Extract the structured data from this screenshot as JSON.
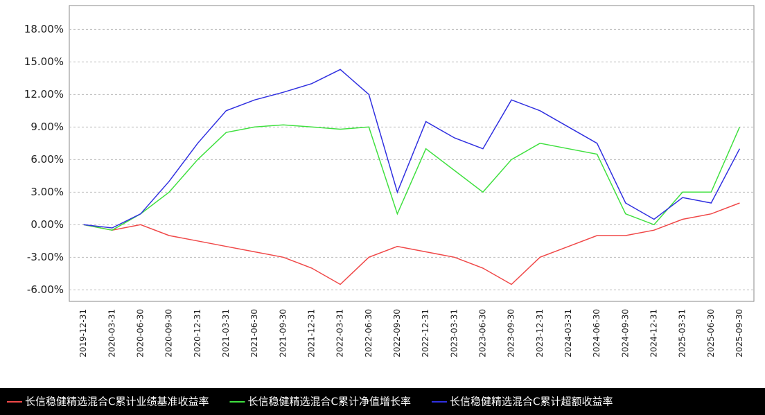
{
  "chart_data": {
    "type": "line",
    "categories": [
      "2019-12-31",
      "2020-03-31",
      "2020-06-30",
      "2020-09-30",
      "2020-12-31",
      "2021-03-31",
      "2021-06-30",
      "2021-09-30",
      "2021-12-31",
      "2022-03-31",
      "2022-06-30",
      "2022-09-30",
      "2022-12-31",
      "2023-03-31",
      "2023-06-30",
      "2023-09-30",
      "2023-12-31",
      "2024-03-31",
      "2024-06-30",
      "2024-09-30",
      "2024-12-31",
      "2025-03-31",
      "2025-06-30",
      "2025-09-30"
    ],
    "series": [
      {
        "name": "长信稳健精选混合C累计业绩基准收益率",
        "color": "#f04848",
        "values": [
          0,
          -0.5,
          0,
          -1,
          -1.5,
          -2,
          -2.5,
          -3,
          -4,
          -5.5,
          -3,
          -2,
          -2.5,
          -3,
          -4,
          -5.5,
          -3,
          -2,
          -1,
          -1,
          -0.5,
          0.5,
          1,
          2
        ]
      },
      {
        "name": "长信稳健精选混合C累计净值增长率",
        "color": "#40e040",
        "values": [
          0,
          -0.5,
          1,
          3,
          6,
          8.5,
          9,
          9.2,
          9,
          8.8,
          9,
          1,
          7,
          5,
          3,
          6,
          7.5,
          7,
          6.5,
          1,
          0,
          3,
          3,
          9
        ]
      },
      {
        "name": "长信稳健精选混合C累计超额收益率",
        "color": "#3030e0",
        "values": [
          0,
          -0.3,
          1,
          4,
          7.5,
          10.5,
          11.5,
          12.2,
          13,
          14.3,
          12,
          3,
          9.5,
          8,
          7,
          11.5,
          10.5,
          9,
          7.5,
          2,
          0.5,
          2.5,
          2,
          7
        ]
      }
    ],
    "ylim": [
      -7,
      20
    ],
    "yticks": [
      {
        "value": -6,
        "label": "-6.00%"
      },
      {
        "value": -3,
        "label": "-3.00%"
      },
      {
        "value": 0,
        "label": "0.00%"
      },
      {
        "value": 3,
        "label": "3.00%"
      },
      {
        "value": 6,
        "label": "6.00%"
      },
      {
        "value": 9,
        "label": "9.00%"
      },
      {
        "value": 12,
        "label": "12.00%"
      },
      {
        "value": 15,
        "label": "15.00%"
      },
      {
        "value": 18,
        "label": "18.00%"
      }
    ],
    "grid": true
  }
}
